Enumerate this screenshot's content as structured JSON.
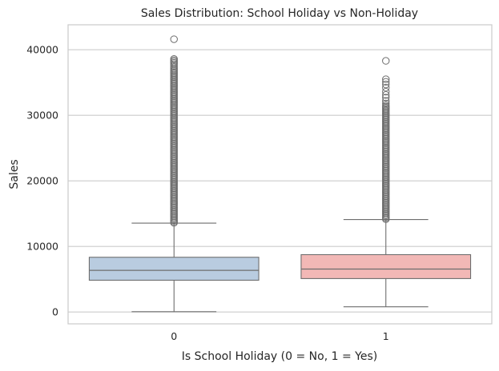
{
  "chart_data": {
    "type": "boxplot",
    "title": "Sales Distribution: School Holiday vs Non-Holiday",
    "xlabel": "Is School Holiday (0 = No, 1 = Yes)",
    "ylabel": "Sales",
    "ylim": [
      -1800,
      43800
    ],
    "yticks": [
      0,
      10000,
      20000,
      30000,
      40000
    ],
    "grid": true,
    "categories": [
      "0",
      "1"
    ],
    "boxes": [
      {
        "category": "0",
        "color": "#b9cce0",
        "whisker_low": 50,
        "q1": 4850,
        "median": 6350,
        "q3": 8350,
        "whisker_high": 13550,
        "dense_outliers_range": [
          13600,
          37000
        ],
        "outliers": [
          37200,
          37500,
          37800,
          38000,
          38200,
          38400,
          38600,
          41600
        ]
      },
      {
        "category": "1",
        "color": "#f2b8b6",
        "whisker_low": 800,
        "q1": 5100,
        "median": 6550,
        "q3": 8750,
        "whisker_high": 14100,
        "dense_outliers_range": [
          14150,
          31500
        ],
        "outliers": [
          31800,
          32200,
          32700,
          33100,
          33600,
          34200,
          34700,
          35100,
          35500,
          38300
        ]
      }
    ]
  }
}
